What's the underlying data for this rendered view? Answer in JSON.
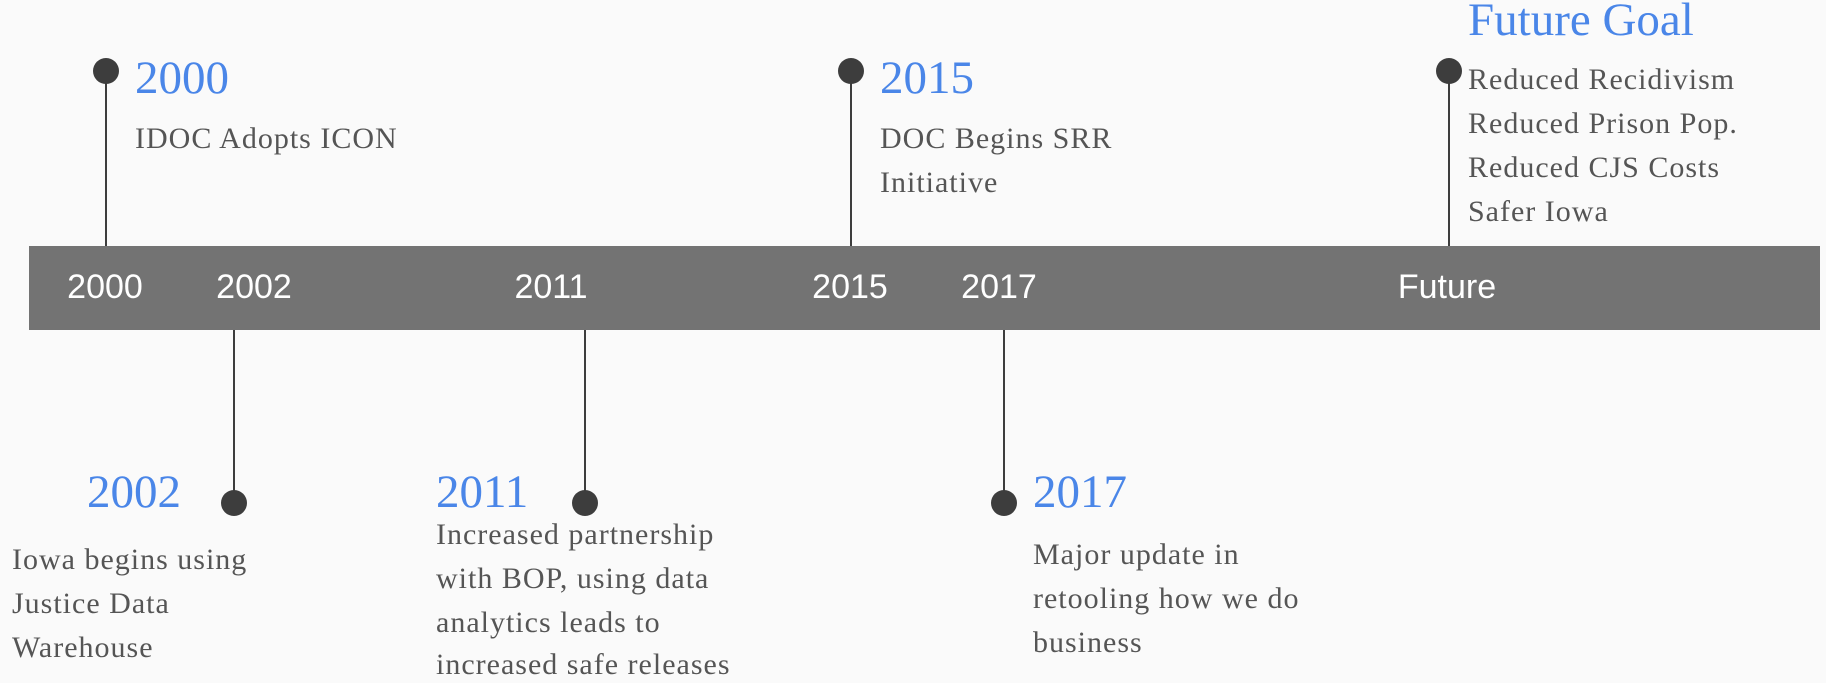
{
  "axis_labels": [
    "2000",
    "2002",
    "2011",
    "2015",
    "2017",
    "Future"
  ],
  "events": [
    {
      "title": "2000",
      "lines": [
        "IDOC Adopts ICON"
      ]
    },
    {
      "title": "2002",
      "lines": [
        "Iowa begins using",
        "Justice Data",
        "Warehouse"
      ]
    },
    {
      "title": "2011",
      "lines": [
        "Increased partnership",
        "with BOP, using data",
        "analytics leads to",
        "increased safe releases"
      ]
    },
    {
      "title": "2015",
      "lines": [
        "DOC Begins SRR",
        "Initiative"
      ]
    },
    {
      "title": "2017",
      "lines": [
        "Major update in",
        "retooling how we do",
        "business"
      ]
    },
    {
      "title": "Future Goal",
      "lines": [
        "Reduced Recidivism",
        "Reduced Prison Pop.",
        "Reduced CJS Costs",
        "Safer Iowa"
      ]
    }
  ]
}
